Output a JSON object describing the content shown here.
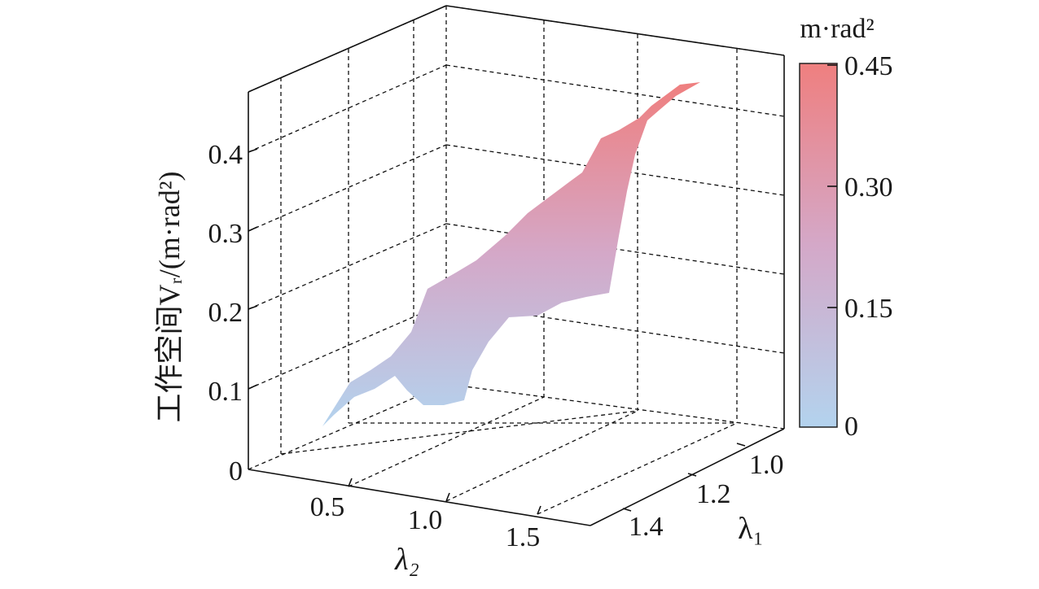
{
  "chart_data": {
    "type": "surface",
    "zlabel": "工作空间Vᵣ/(m·rad²)",
    "xlabel": "λ₂",
    "ylabel": "λ₁",
    "z_ticks": [
      "0",
      "0.1",
      "0.2",
      "0.3",
      "0.4"
    ],
    "x_ticks": [
      "0.5",
      "1.0",
      "1.5"
    ],
    "y_ticks": [
      "1.0",
      "1.2",
      "1.4"
    ],
    "zlim": [
      0,
      0.48
    ],
    "colorbar": {
      "title": "m·rad²",
      "ticks": [
        "0",
        "0.15",
        "0.30",
        "0.45"
      ],
      "range": [
        0,
        0.45
      ],
      "color_low": "#b3d3ee",
      "color_high": "#ef7f7f"
    },
    "surface_points": [
      {
        "lambda2": 0.2,
        "lambda1": 1.45,
        "v": 0.0
      },
      {
        "lambda2": 0.4,
        "lambda1": 1.35,
        "v": 0.1
      },
      {
        "lambda2": 0.6,
        "lambda1": 1.35,
        "v": 0.18
      },
      {
        "lambda2": 0.8,
        "lambda1": 1.3,
        "v": 0.22
      },
      {
        "lambda2": 1.0,
        "lambda1": 1.3,
        "v": 0.27
      },
      {
        "lambda2": 1.2,
        "lambda1": 1.2,
        "v": 0.32
      },
      {
        "lambda2": 1.4,
        "lambda1": 1.1,
        "v": 0.37
      },
      {
        "lambda2": 1.6,
        "lambda1": 1.0,
        "v": 0.42
      },
      {
        "lambda2": 1.8,
        "lambda1": 1.0,
        "v": 0.45
      }
    ]
  }
}
